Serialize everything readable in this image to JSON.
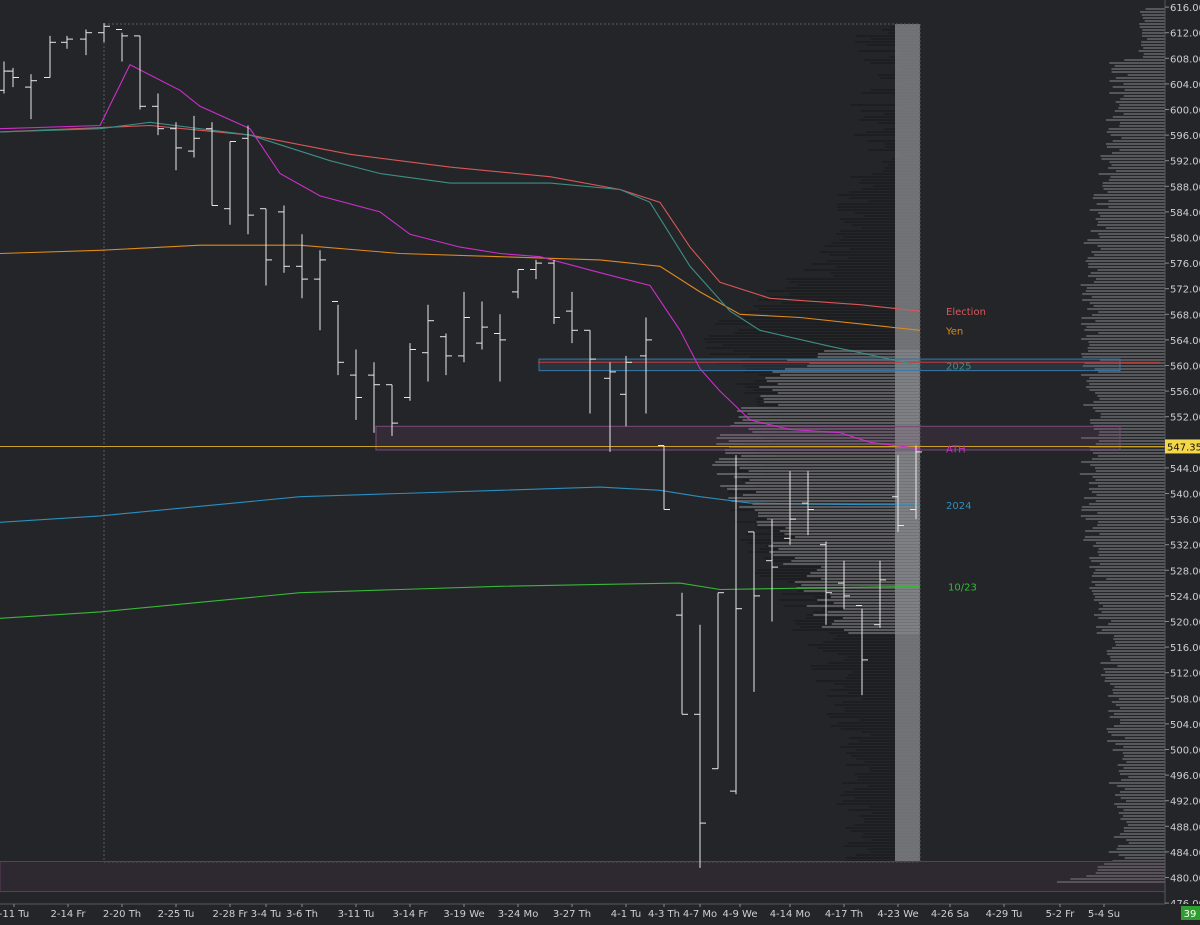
{
  "chart_data": {
    "type": "ohlc",
    "colors": {
      "background": "#242528",
      "bar": "#e8e8e8",
      "profile_right": "#5f6063",
      "profile_mid": "#8c8d90",
      "hvn_band": "#2f3035",
      "axis_text": "#cfcfcf",
      "last_price_bg": "#f5d84a",
      "last_price_line": "#c9a227",
      "election": "#d95757",
      "yen": "#e08a1e",
      "ma_2025": "#3d8f86",
      "ath": "#cc2fcc",
      "ma_2024": "#2a8fc0",
      "ma_1023": "#38b838",
      "zone_blue": "#3a78a8",
      "zone_purple": "#7a4a7a",
      "zone_bottom": "#5c3f5c"
    },
    "y_axis": {
      "range": [
        474,
        617
      ],
      "ticks": [
        "616.00",
        "612.00",
        "608.00",
        "604.00",
        "600.00",
        "596.00",
        "592.00",
        "588.00",
        "584.00",
        "580.00",
        "576.00",
        "572.00",
        "568.00",
        "564.00",
        "560.00",
        "556.00",
        "552.00",
        "548.00",
        "544.00",
        "540.00",
        "536.00",
        "532.00",
        "528.00",
        "524.00",
        "520.00",
        "516.00",
        "512.00",
        "508.00",
        "504.00",
        "500.00",
        "496.00",
        "492.00",
        "488.00",
        "484.00",
        "480.00",
        "476.00"
      ]
    },
    "x_axis": {
      "labels": [
        "-11 Tu",
        "2-14 Fr",
        "2-20 Th",
        "2-25 Tu",
        "2-28 Fr",
        "3-4 Tu",
        "3-6 Th",
        "3-11 Tu",
        "3-14 Fr",
        "3-19 We",
        "3-24 Mo",
        "3-27 Th",
        "4-1 Tu",
        "4-3 Th",
        "4-7 Mo",
        "4-9 We",
        "4-14 Mo",
        "4-17 Th",
        "4-23 We",
        "4-26 Sa",
        "4-29 Tu",
        "5-2 Fr",
        "5-4 Su"
      ],
      "label_x": [
        14,
        68,
        122,
        176,
        230,
        266,
        302,
        356,
        410,
        464,
        518,
        572,
        626,
        664,
        700,
        740,
        790,
        844,
        898,
        950,
        1004,
        1060,
        1104
      ],
      "corner_badge": "39"
    },
    "last_price": "547.35",
    "last_price_value": 547.35,
    "bars": [
      {
        "x": 4,
        "o": 603.0,
        "h": 607.5,
        "l": 602.5,
        "c": 606.0
      },
      {
        "x": 13,
        "o": 606.0,
        "h": 606.5,
        "l": 603.5,
        "c": 605.0
      },
      {
        "x": 31,
        "o": 603.5,
        "h": 605.5,
        "l": 598.5,
        "c": 604.5
      },
      {
        "x": 50,
        "o": 605.0,
        "h": 611.5,
        "l": 605.0,
        "c": 610.5
      },
      {
        "x": 67,
        "o": 610.5,
        "h": 611.5,
        "l": 609.5,
        "c": 611.0
      },
      {
        "x": 86,
        "o": 611.0,
        "h": 612.5,
        "l": 608.5,
        "c": 612.0
      },
      {
        "x": 104,
        "o": 612.0,
        "h": 613.5,
        "l": 610.5,
        "c": 613.0
      },
      {
        "x": 122,
        "o": 612.5,
        "h": 612.0,
        "l": 607.5,
        "c": 611.5
      },
      {
        "x": 140,
        "o": 611.5,
        "h": 611.5,
        "l": 600.0,
        "c": 600.5
      },
      {
        "x": 158,
        "o": 600.5,
        "h": 602.5,
        "l": 596.0,
        "c": 597.0
      },
      {
        "x": 176,
        "o": 597.0,
        "h": 598.0,
        "l": 590.5,
        "c": 594.0
      },
      {
        "x": 194,
        "o": 593.5,
        "h": 599.0,
        "l": 592.5,
        "c": 595.5
      },
      {
        "x": 212,
        "o": 597.0,
        "h": 598.0,
        "l": 585.0,
        "c": 585.0
      },
      {
        "x": 230,
        "o": 584.5,
        "h": 595.0,
        "l": 582.0,
        "c": 595.0
      },
      {
        "x": 248,
        "o": 595.5,
        "h": 597.5,
        "l": 580.5,
        "c": 583.5
      },
      {
        "x": 266,
        "o": 584.5,
        "h": 584.5,
        "l": 572.5,
        "c": 576.5
      },
      {
        "x": 284,
        "o": 584.0,
        "h": 585.0,
        "l": 574.5,
        "c": 575.5
      },
      {
        "x": 302,
        "o": 575.5,
        "h": 580.5,
        "l": 570.5,
        "c": 573.5
      },
      {
        "x": 320,
        "o": 573.5,
        "h": 578.0,
        "l": 565.5,
        "c": 576.5
      },
      {
        "x": 338,
        "o": 570.0,
        "h": 569.5,
        "l": 558.5,
        "c": 560.5
      },
      {
        "x": 356,
        "o": 558.5,
        "h": 562.5,
        "l": 551.5,
        "c": 555.0
      },
      {
        "x": 374,
        "o": 558.5,
        "h": 560.5,
        "l": 549.5,
        "c": 557.0
      },
      {
        "x": 392,
        "o": 557.0,
        "h": 557.0,
        "l": 549.0,
        "c": 551.0
      },
      {
        "x": 410,
        "o": 555.0,
        "h": 563.5,
        "l": 554.5,
        "c": 562.5
      },
      {
        "x": 428,
        "o": 562.0,
        "h": 569.5,
        "l": 557.5,
        "c": 567.0
      },
      {
        "x": 446,
        "o": 564.5,
        "h": 565.0,
        "l": 558.5,
        "c": 561.5
      },
      {
        "x": 464,
        "o": 561.5,
        "h": 571.5,
        "l": 560.5,
        "c": 567.5
      },
      {
        "x": 482,
        "o": 563.5,
        "h": 570.0,
        "l": 562.5,
        "c": 566.0
      },
      {
        "x": 500,
        "o": 565.0,
        "h": 568.0,
        "l": 557.5,
        "c": 564.0
      },
      {
        "x": 518,
        "o": 571.5,
        "h": 575.0,
        "l": 570.5,
        "c": 575.0
      },
      {
        "x": 536,
        "o": 575.0,
        "h": 576.5,
        "l": 573.5,
        "c": 576.0
      },
      {
        "x": 554,
        "o": 576.0,
        "h": 576.5,
        "l": 566.5,
        "c": 567.5
      },
      {
        "x": 572,
        "o": 568.5,
        "h": 571.5,
        "l": 563.5,
        "c": 565.5
      },
      {
        "x": 590,
        "o": 565.5,
        "h": 565.5,
        "l": 552.5,
        "c": 561.0
      },
      {
        "x": 610,
        "o": 558.0,
        "h": 560.5,
        "l": 546.5,
        "c": 559.0
      },
      {
        "x": 626,
        "o": 555.5,
        "h": 561.5,
        "l": 550.5,
        "c": 560.5
      },
      {
        "x": 646,
        "o": 561.5,
        "h": 567.5,
        "l": 552.5,
        "c": 564.0
      },
      {
        "x": 664,
        "o": 547.5,
        "h": 547.5,
        "l": 537.5,
        "c": 537.5
      },
      {
        "x": 682,
        "o": 521.0,
        "h": 524.5,
        "l": 505.5,
        "c": 505.5
      },
      {
        "x": 700,
        "o": 505.5,
        "h": 519.5,
        "l": 481.5,
        "c": 488.5
      },
      {
        "x": 718,
        "o": 497.0,
        "h": 524.5,
        "l": 497.0,
        "c": 524.5
      },
      {
        "x": 736,
        "o": 493.5,
        "h": 546.0,
        "l": 493.0,
        "c": 522.0
      },
      {
        "x": 754,
        "o": 534.0,
        "h": 534.0,
        "l": 509.0,
        "c": 524.0
      },
      {
        "x": 772,
        "o": 529.5,
        "h": 536.0,
        "l": 520.0,
        "c": 528.5
      },
      {
        "x": 790,
        "o": 533.0,
        "h": 543.5,
        "l": 532.0,
        "c": 536.0
      },
      {
        "x": 808,
        "o": 538.5,
        "h": 543.5,
        "l": 533.5,
        "c": 537.5
      },
      {
        "x": 826,
        "o": 532.0,
        "h": 532.5,
        "l": 519.5,
        "c": 524.5
      },
      {
        "x": 844,
        "o": 526.0,
        "h": 529.5,
        "l": 522.0,
        "c": 524.0
      },
      {
        "x": 862,
        "o": 522.5,
        "h": 522.0,
        "l": 508.5,
        "c": 514.0
      },
      {
        "x": 880,
        "o": 519.5,
        "h": 529.5,
        "l": 519.0,
        "c": 526.5
      },
      {
        "x": 898,
        "o": 539.5,
        "h": 546.0,
        "l": 534.0,
        "c": 535.0
      },
      {
        "x": 916,
        "o": 537.5,
        "h": 547.5,
        "l": 536.0,
        "c": 546.5
      }
    ],
    "lines": [
      {
        "label": "Election",
        "color": "#d95757",
        "label_x": 946,
        "points": [
          [
            0,
            596.5
          ],
          [
            150,
            597.5
          ],
          [
            250,
            596.0
          ],
          [
            350,
            593.0
          ],
          [
            450,
            591.0
          ],
          [
            550,
            589.5
          ],
          [
            620,
            587.5
          ],
          [
            660,
            585.5
          ],
          [
            690,
            578.5
          ],
          [
            720,
            573.0
          ],
          [
            770,
            570.5
          ],
          [
            860,
            569.5
          ],
          [
            920,
            568.5
          ]
        ]
      },
      {
        "label": "Yen",
        "color": "#e08a1e",
        "label_x": 946,
        "points": [
          [
            0,
            577.5
          ],
          [
            100,
            578.0
          ],
          [
            200,
            578.8
          ],
          [
            300,
            578.8
          ],
          [
            400,
            577.5
          ],
          [
            500,
            577.0
          ],
          [
            600,
            576.5
          ],
          [
            660,
            575.5
          ],
          [
            700,
            571.5
          ],
          [
            740,
            568.0
          ],
          [
            800,
            567.5
          ],
          [
            920,
            565.5
          ]
        ]
      },
      {
        "label": "2025",
        "color": "#3d8f86",
        "label_x": 946,
        "points": [
          [
            0,
            596.5
          ],
          [
            100,
            597.0
          ],
          [
            150,
            598.0
          ],
          [
            250,
            596.0
          ],
          [
            330,
            592.0
          ],
          [
            380,
            590.0
          ],
          [
            450,
            588.5
          ],
          [
            550,
            588.5
          ],
          [
            620,
            587.5
          ],
          [
            650,
            585.5
          ],
          [
            690,
            575.5
          ],
          [
            730,
            568.5
          ],
          [
            760,
            565.5
          ],
          [
            830,
            563.0
          ],
          [
            920,
            560.0
          ]
        ]
      },
      {
        "label": "ATH",
        "color": "#cc2fcc",
        "label_x": 946,
        "points": [
          [
            0,
            597.0
          ],
          [
            100,
            597.5
          ],
          [
            130,
            607.0
          ],
          [
            180,
            603.0
          ],
          [
            200,
            600.5
          ],
          [
            250,
            597.0
          ],
          [
            280,
            590.0
          ],
          [
            320,
            586.5
          ],
          [
            380,
            584.0
          ],
          [
            410,
            580.5
          ],
          [
            460,
            578.5
          ],
          [
            500,
            577.5
          ],
          [
            540,
            577.0
          ],
          [
            600,
            574.5
          ],
          [
            650,
            572.5
          ],
          [
            680,
            565.5
          ],
          [
            700,
            559.5
          ],
          [
            720,
            556.0
          ],
          [
            750,
            551.5
          ],
          [
            790,
            550.0
          ],
          [
            840,
            549.5
          ],
          [
            870,
            548.0
          ],
          [
            920,
            547.0
          ]
        ]
      },
      {
        "label": "2024",
        "color": "#2a8fc0",
        "label_x": 946,
        "points": [
          [
            0,
            535.5
          ],
          [
            100,
            536.5
          ],
          [
            200,
            538.0
          ],
          [
            300,
            539.5
          ],
          [
            400,
            540.0
          ],
          [
            500,
            540.5
          ],
          [
            600,
            541.0
          ],
          [
            660,
            540.5
          ],
          [
            700,
            539.5
          ],
          [
            750,
            538.5
          ],
          [
            850,
            538.3
          ],
          [
            920,
            538.2
          ]
        ]
      },
      {
        "label": "10/23",
        "color": "#38b838",
        "label_x": 948,
        "points": [
          [
            0,
            520.5
          ],
          [
            100,
            521.5
          ],
          [
            200,
            523.0
          ],
          [
            300,
            524.5
          ],
          [
            400,
            525.0
          ],
          [
            500,
            525.5
          ],
          [
            600,
            525.8
          ],
          [
            680,
            526.0
          ],
          [
            720,
            525.0
          ],
          [
            800,
            525.2
          ],
          [
            920,
            525.5
          ]
        ]
      }
    ],
    "zones": [
      {
        "name": "zone-2025",
        "y_top": 561.0,
        "y_bottom": 559.2,
        "x0": 539,
        "x1": 1120,
        "color": "#3a78a8"
      },
      {
        "name": "zone-ath",
        "y_top": 550.5,
        "y_bottom": 546.8,
        "x0": 376,
        "x1": 1120,
        "color": "#7a4a7a"
      },
      {
        "name": "zone-bottom",
        "y_top": 482.5,
        "y_bottom": 477.8,
        "x0": 0,
        "x1": 1165,
        "color": "#5c3f5c"
      }
    ],
    "hlines": [
      {
        "name": "red-line",
        "y": 560.5,
        "x0": 538,
        "x1": 1160,
        "color": "#c33b3b"
      }
    ]
  }
}
